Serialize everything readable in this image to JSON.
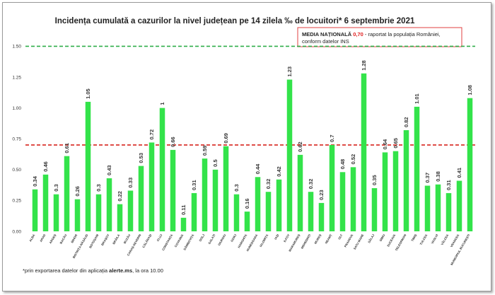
{
  "colors": {
    "bar": "#33e34a",
    "national_line": "#d7261e",
    "threshold_line": "#2fae4a",
    "annotation_border": "#e04040"
  },
  "annotation": {
    "label_bold": "MEDIA NAȚIONALĂ",
    "value": "0,70",
    "text1": " - raportat la populația României,",
    "text2": "conform datelor INS"
  },
  "footnote": {
    "prefix": "*prin exportarea datelor din aplicația ",
    "app": "alerte.ms",
    "suffix": ", la ora 10.00"
  },
  "chart_data": {
    "type": "bar",
    "title": "Incidența cumulată a cazurilor la nivel județean pe 14 zilela ‰ de locuitori* 6 septembrie 2021",
    "xlabel": "",
    "ylabel": "",
    "ylim": [
      0,
      1.6
    ],
    "yticks": [
      "0.00",
      "0.25",
      "0.50",
      "0.75",
      "1.00",
      "1.25",
      "1.50"
    ],
    "grid": false,
    "reference_lines": [
      {
        "value": 0.7,
        "style": "dashed",
        "color": "#d7261e"
      },
      {
        "value": 1.5,
        "style": "dashed",
        "color": "#2fae4a"
      }
    ],
    "categories": [
      "ALBA",
      "ARAD",
      "ARGEȘ",
      "BACĂU",
      "BIHOR",
      "BISTRIȚA-NĂSĂUD",
      "BOTOȘANI",
      "BRAȘOV",
      "BRĂILA",
      "BUZĂU",
      "CARAȘ-SEVERIN",
      "CĂLĂRAȘI",
      "CLUJ",
      "CONSTANȚA",
      "COVASNA",
      "DÂMBOVIȚA",
      "DOLJ",
      "GALAȚI",
      "GIURGIU",
      "GORJ",
      "HARGHITA",
      "HUNEDOARA",
      "IALOMIȚA",
      "IAȘI",
      "ILFOV",
      "MARAMUREȘ",
      "MEHEDINȚI",
      "MUREȘ",
      "NEAMȚ",
      "OLT",
      "PRAHOVA",
      "SATU MARE",
      "SĂLAJ",
      "SIBIU",
      "SUCEAVA",
      "TELEORMAN",
      "TIMIȘ",
      "TULCEA",
      "VASLUI",
      "VÂLCEA",
      "VRANCEA",
      "MUNICIPIUL BUCUREȘTI"
    ],
    "values": [
      0.34,
      0.46,
      0.3,
      0.61,
      0.26,
      1.05,
      0.3,
      0.43,
      0.22,
      0.33,
      0.53,
      0.72,
      1,
      0.66,
      0.11,
      0.31,
      0.59,
      0.5,
      0.69,
      0.3,
      0.16,
      0.44,
      0.32,
      0.42,
      1.23,
      0.62,
      0.32,
      0.23,
      0.7,
      0.48,
      0.52,
      1.28,
      0.35,
      0.64,
      0.65,
      0.82,
      1.01,
      0.37,
      0.38,
      0.31,
      0.41,
      1.08
    ],
    "data_labels": [
      "0.34",
      "0.46",
      "0.3",
      "0.61",
      "0.26",
      "1.05",
      "0.3",
      "0.43",
      "0.22",
      "0.33",
      "0.53",
      "0.72",
      "1",
      "0.66",
      "0.11",
      "0.31",
      "0.59",
      "0.5",
      "0.69",
      "0.3",
      "0.16",
      "0.44",
      "0.32",
      "0.42",
      "1.23",
      "0.62",
      "0.32",
      "0.23",
      "0.7",
      "0.48",
      "0.52",
      "1.28",
      "0.35",
      "0.64",
      "0.65",
      "0.82",
      "1.01",
      "0.37",
      "0.38",
      "0.31",
      "0.41",
      "1.08"
    ]
  }
}
